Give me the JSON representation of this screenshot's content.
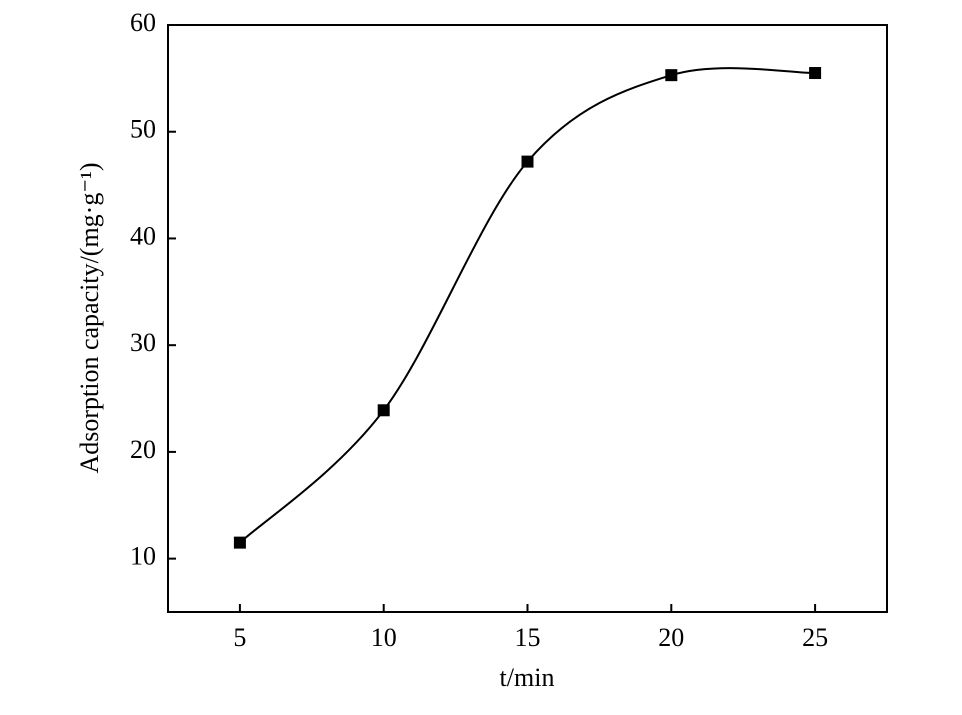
{
  "chart_data": {
    "type": "line",
    "x_label": "t/min",
    "y_label": "Adsorption capacity/(mg·g⁻¹)",
    "x": [
      5,
      10,
      15,
      20,
      25
    ],
    "values": [
      11.5,
      23.9,
      47.2,
      55.3,
      55.5
    ],
    "color": "#000000",
    "marker": "square",
    "smooth": true,
    "xlim": [
      2.5,
      27.5
    ],
    "xticks": [
      5,
      10,
      15,
      20,
      25
    ],
    "ylim": [
      5,
      60
    ],
    "yticks": [
      10,
      20,
      30,
      40,
      50,
      60
    ]
  }
}
